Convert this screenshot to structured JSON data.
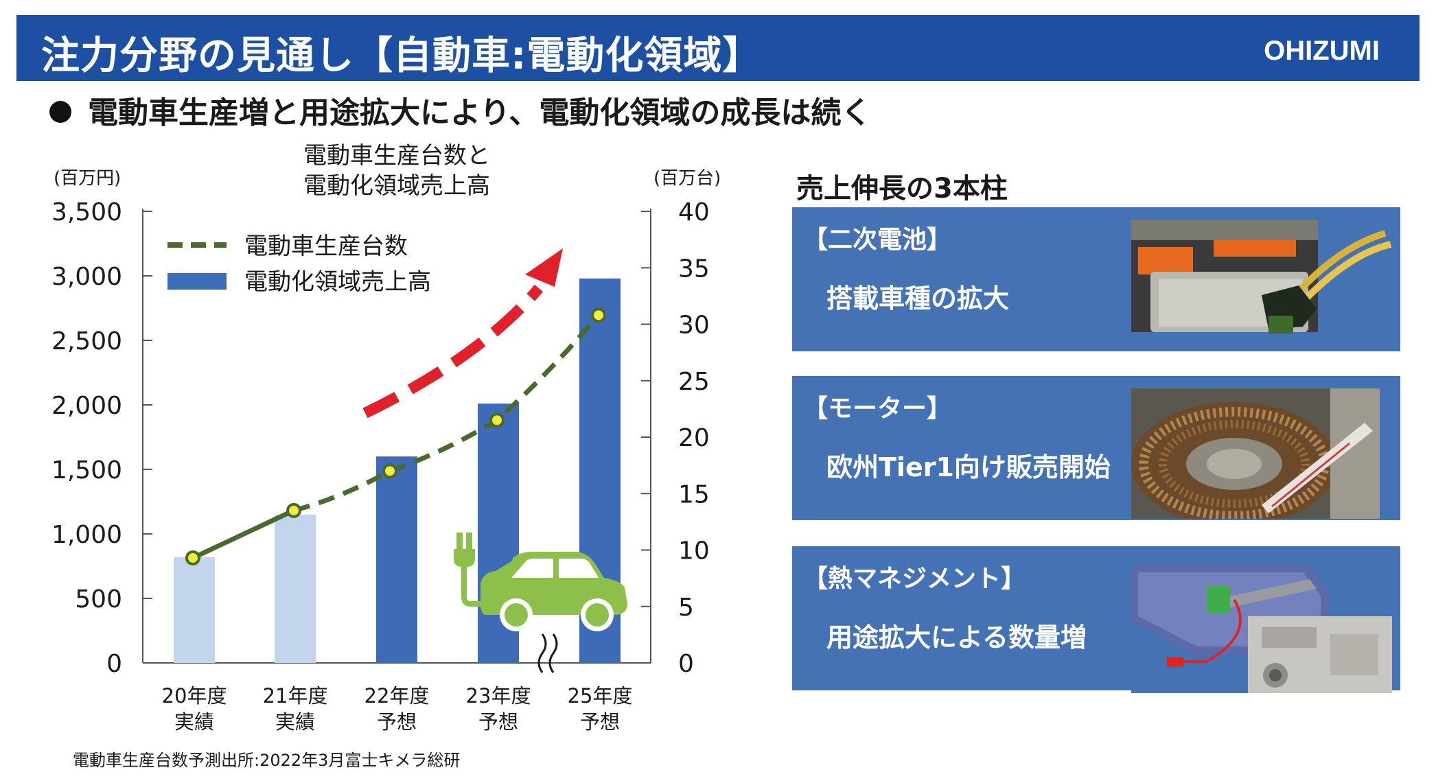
{
  "header": {
    "title": "注力分野の見通し【自動車:電動化領域】",
    "logo": "OHIZUMI",
    "bg_color": "#1d50a2"
  },
  "subtitle": "電動車生産増と用途拡大により、電動化領域の成長は続く",
  "chart_data": {
    "type": "bar",
    "title": "電動車生産台数と\n電動化領域売上高",
    "title_lines": [
      "電動車生産台数と",
      "電動化領域売上高"
    ],
    "y_left_unit": "(百万円)",
    "y_right_unit": "(百万台)",
    "ylim_left": [
      0,
      3500
    ],
    "ylim_right": [
      0,
      40
    ],
    "left_ticks": [
      "0",
      "500",
      "1,000",
      "1,500",
      "2,000",
      "2,500",
      "3,000",
      "3,500"
    ],
    "right_ticks": [
      "0",
      "5",
      "10",
      "15",
      "20",
      "25",
      "30",
      "35",
      "40"
    ],
    "categories": [
      [
        "20年度",
        "実績"
      ],
      [
        "21年度",
        "実績"
      ],
      [
        "22年度",
        "予想"
      ],
      [
        "23年度",
        "予想"
      ],
      [
        "25年度",
        "予想"
      ]
    ],
    "legend": {
      "line": "電動車生産台数",
      "bar": "電動化領域売上高",
      "placement": "top-left"
    },
    "series": [
      {
        "name": "電動化領域売上高",
        "kind": "bar",
        "axis": "left",
        "values": [
          820,
          1150,
          1600,
          2010,
          2980
        ],
        "colors": [
          "#c3d5ec",
          "#c3d5ec",
          "#3e6bb7",
          "#3e6bb7",
          "#3e6bb7"
        ]
      },
      {
        "name": "電動車生産台数",
        "kind": "line",
        "axis": "right",
        "values": [
          9.3,
          13.5,
          17,
          21.5,
          30.8
        ],
        "color": "#4a6a2d"
      }
    ],
    "axis_break_between": [
      "23年度",
      "25年度"
    ],
    "grid": false
  },
  "pillars": {
    "heading": "売上伸長の3本柱",
    "items": [
      {
        "title": "【二次電池】",
        "desc": "搭載車種の拡大",
        "icon": "battery-photo"
      },
      {
        "title": "【モーター】",
        "desc": "欧州Tier1向け販売開始",
        "icon": "motor-photo"
      },
      {
        "title": "【熱マネジメント】",
        "desc": "用途拡大による数量増",
        "icon": "thermal-parts-photo"
      }
    ]
  },
  "source": "電動車生産台数予測出所:2022年3月富士キメラ総研"
}
